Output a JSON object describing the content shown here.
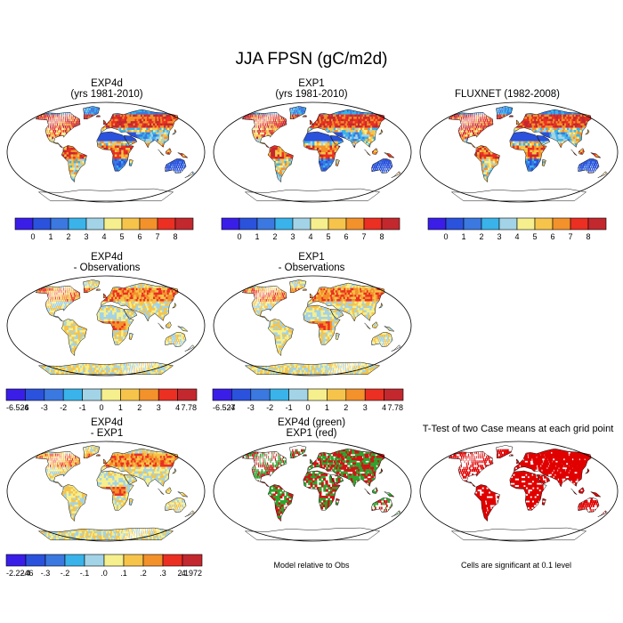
{
  "page": {
    "title": "JJA FPSN (gC/m2d)"
  },
  "panels": [
    {
      "id": "exp4d",
      "title_lines": [
        "EXP4d",
        "(yrs 1981-2010)"
      ],
      "palette": "abs",
      "colorbar": "abs"
    },
    {
      "id": "exp1",
      "title_lines": [
        "EXP1",
        "(yrs 1981-2010)"
      ],
      "palette": "abs",
      "colorbar": "abs"
    },
    {
      "id": "fluxnet",
      "title_lines": [
        "FLUXNET (1982-2008)"
      ],
      "palette": "abs",
      "colorbar": "abs"
    },
    {
      "id": "exp4d-obs",
      "title_lines": [
        "EXP4d",
        "- Observations"
      ],
      "palette": "diff",
      "colorbar": "diff1"
    },
    {
      "id": "exp1-obs",
      "title_lines": [
        "EXP1",
        "- Observations"
      ],
      "palette": "diff",
      "colorbar": "diff2"
    },
    {
      "id": "exp4d-exp1",
      "title_lines": [
        "EXP4d",
        "- EXP1"
      ],
      "palette": "diff",
      "colorbar": "diff3"
    },
    {
      "id": "green-red",
      "title_lines": [
        "EXP4d (green)",
        "EXP1 (red)"
      ],
      "palette": "gr",
      "colorbar": null
    },
    {
      "id": "ttest",
      "title_lines": [
        "T-Test of two Case means at each grid point"
      ],
      "palette": "sig",
      "colorbar": null
    }
  ],
  "colorbars": {
    "abs": {
      "colors": [
        "#3a1ee8",
        "#2a52dc",
        "#3b78e0",
        "#39b3ea",
        "#a3d3e6",
        "#f6ef8d",
        "#f6c44a",
        "#f3912b",
        "#eb2f22",
        "#c2282e"
      ],
      "labels": [
        "0",
        "1",
        "2",
        "3",
        "4",
        "5",
        "6",
        "7",
        "8"
      ]
    },
    "diff1": {
      "colors": [
        "#3a1ee8",
        "#2a52dc",
        "#3b78e0",
        "#39b3ea",
        "#a3d3e6",
        "#f6ef8d",
        "#f6c44a",
        "#f3912b",
        "#eb2f22",
        "#c2282e"
      ],
      "labels": [
        "-6.526",
        "-4",
        "-3",
        "-2",
        "-1",
        "0",
        "1",
        "2",
        "3",
        "4",
        "7.78"
      ]
    },
    "diff2": {
      "colors": [
        "#3a1ee8",
        "#2a52dc",
        "#3b78e0",
        "#39b3ea",
        "#a3d3e6",
        "#f6ef8d",
        "#f6c44a",
        "#f3912b",
        "#eb2f22",
        "#c2282e"
      ],
      "labels": [
        "-6.527",
        "-4",
        "-3",
        "-2",
        "-1",
        "0",
        "1",
        "2",
        "3",
        "4",
        "7.78"
      ]
    },
    "diff3": {
      "colors": [
        "#3a1ee8",
        "#2a52dc",
        "#3b78e0",
        "#39b3ea",
        "#a3d3e6",
        "#f6ef8d",
        "#f6c44a",
        "#f3912b",
        "#eb2f22",
        "#c2282e"
      ],
      "labels": [
        "-2.2246",
        "-.4",
        "-.3",
        "-.2",
        "-.1",
        ".0",
        ".1",
        ".2",
        ".3",
        ".4",
        "2.1972"
      ]
    }
  },
  "notes": {
    "model_relative": "Model relative to Obs",
    "significance": "Cells are significant at 0.1 level"
  },
  "chart_data": {
    "type": "heatmap",
    "title": "JJA FPSN (gC/m2d)",
    "variable": "FPSN",
    "units": "gC/m2d",
    "season": "JJA",
    "panels": [
      {
        "name": "EXP4d (yrs 1981-2010)",
        "range": [
          0,
          8
        ],
        "levels": [
          0,
          1,
          2,
          3,
          4,
          5,
          6,
          7,
          8
        ]
      },
      {
        "name": "EXP1 (yrs 1981-2010)",
        "range": [
          0,
          8
        ],
        "levels": [
          0,
          1,
          2,
          3,
          4,
          5,
          6,
          7,
          8
        ]
      },
      {
        "name": "FLUXNET (1982-2008)",
        "range": [
          0,
          8
        ],
        "levels": [
          0,
          1,
          2,
          3,
          4,
          5,
          6,
          7,
          8
        ]
      },
      {
        "name": "EXP4d - Observations",
        "range": [
          -6.526,
          7.78
        ],
        "levels": [
          -4,
          -3,
          -2,
          -1,
          0,
          1,
          2,
          3,
          4
        ]
      },
      {
        "name": "EXP1 - Observations",
        "range": [
          -6.527,
          7.78
        ],
        "levels": [
          -4,
          -3,
          -2,
          -1,
          0,
          1,
          2,
          3,
          4
        ]
      },
      {
        "name": "EXP4d - EXP1",
        "range": [
          -2.2246,
          2.1972
        ],
        "levels": [
          -0.4,
          -0.3,
          -0.2,
          -0.1,
          0,
          0.1,
          0.2,
          0.3,
          0.4
        ]
      },
      {
        "name": "EXP4d (green) EXP1 (red)",
        "note": "Model relative to Obs"
      },
      {
        "name": "T-Test of two Case means at each grid point",
        "note": "Cells are significant at 0.1 level"
      }
    ]
  }
}
